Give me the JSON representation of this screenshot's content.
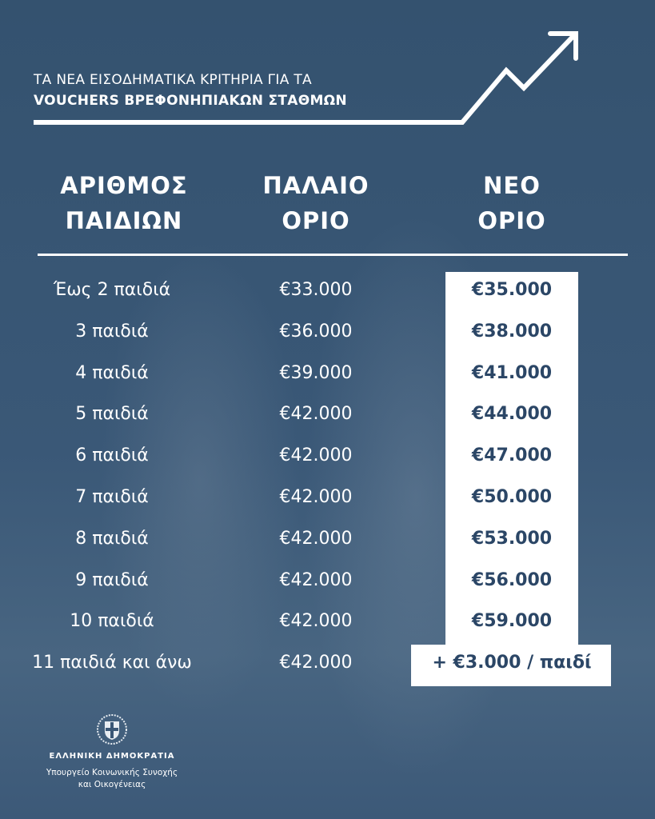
{
  "header": {
    "title_line1": "ΤΑ ΝΕΑ ΕΙΣΟΔΗΜΑΤΙΚΑ ΚΡΙΤΗΡΙΑ ΓΙΑ ΤΑ",
    "title_line2": "VOUCHERS ΒΡΕΦΟΝΗΠΙΑΚΩΝ ΣΤΑΘΜΩΝ",
    "icon": "trend-up-arrow-icon"
  },
  "table": {
    "columns": [
      {
        "line1": "ΑΡΙΘΜΟΣ",
        "line2": "ΠΑΙΔΙΩΝ"
      },
      {
        "line1": "ΠΑΛΑΙΟ",
        "line2": "ΟΡΙΟ"
      },
      {
        "line1": "ΝΕΟ",
        "line2": "ΟΡΙΟ"
      }
    ],
    "rows": [
      {
        "children": "Έως 2 παιδιά",
        "old": "€33.000",
        "new": "€35.000"
      },
      {
        "children": "3 παιδιά",
        "old": "€36.000",
        "new": "€38.000"
      },
      {
        "children": "4 παιδιά",
        "old": "€39.000",
        "new": "€41.000"
      },
      {
        "children": "5 παιδιά",
        "old": "€42.000",
        "new": "€44.000"
      },
      {
        "children": "6 παιδιά",
        "old": "€42.000",
        "new": "€47.000"
      },
      {
        "children": "7 παιδιά",
        "old": "€42.000",
        "new": "€50.000"
      },
      {
        "children": "8 παιδιά",
        "old": "€42.000",
        "new": "€53.000"
      },
      {
        "children": "9 παιδιά",
        "old": "€42.000",
        "new": "€56.000"
      },
      {
        "children": "10 παιδιά",
        "old": "€42.000",
        "new": "€59.000"
      },
      {
        "children": "11 παιδιά και άνω",
        "old": "€42.000",
        "new": "+ €3.000 / παιδί"
      }
    ]
  },
  "footer": {
    "emblem": "greek-coat-of-arms-icon",
    "org": "ΕΛΛΗΝΙΚΗ ΔΗΜΟΚΡΑΤΙΑ",
    "ministry_line1": "Υπουργείο Κοινωνικής Συνοχής",
    "ministry_line2": "και Οικογένειας"
  },
  "colors": {
    "background": "#3a5776",
    "new_value_text": "#2b4666",
    "highlight_box": "#ffffff"
  }
}
